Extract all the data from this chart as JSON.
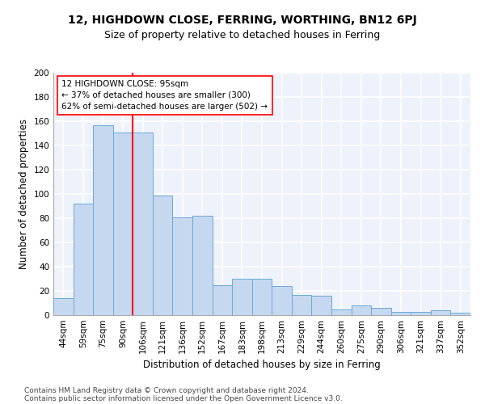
{
  "title1": "12, HIGHDOWN CLOSE, FERRING, WORTHING, BN12 6PJ",
  "title2": "Size of property relative to detached houses in Ferring",
  "xlabel": "Distribution of detached houses by size in Ferring",
  "ylabel": "Number of detached properties",
  "categories": [
    "44sqm",
    "59sqm",
    "75sqm",
    "90sqm",
    "106sqm",
    "121sqm",
    "136sqm",
    "152sqm",
    "167sqm",
    "183sqm",
    "198sqm",
    "213sqm",
    "229sqm",
    "244sqm",
    "260sqm",
    "275sqm",
    "290sqm",
    "306sqm",
    "321sqm",
    "337sqm",
    "352sqm"
  ],
  "values": [
    14,
    92,
    157,
    151,
    151,
    99,
    81,
    82,
    25,
    30,
    30,
    24,
    17,
    16,
    5,
    8,
    6,
    3,
    3,
    4,
    2
  ],
  "bar_color": "#c5d8f0",
  "bar_edgecolor": "#6aaad4",
  "vline_x": 3.5,
  "vline_color": "red",
  "annotation_text": "12 HIGHDOWN CLOSE: 95sqm\n← 37% of detached houses are smaller (300)\n62% of semi-detached houses are larger (502) →",
  "annotation_box_color": "white",
  "annotation_box_edgecolor": "red",
  "ylim": [
    0,
    200
  ],
  "yticks": [
    0,
    20,
    40,
    60,
    80,
    100,
    120,
    140,
    160,
    180,
    200
  ],
  "footer1": "Contains HM Land Registry data © Crown copyright and database right 2024.",
  "footer2": "Contains public sector information licensed under the Open Government Licence v3.0.",
  "bg_color": "#eef2fb",
  "grid_color": "white",
  "title1_fontsize": 10,
  "title2_fontsize": 9,
  "axis_fontsize": 8.5,
  "tick_fontsize": 7.5,
  "footer_fontsize": 6.5
}
